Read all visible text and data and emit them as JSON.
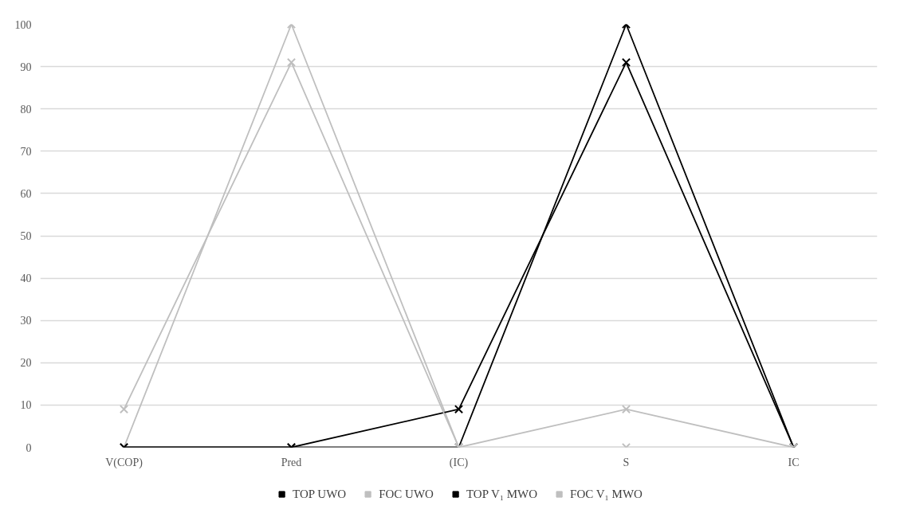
{
  "chart_data": {
    "type": "line",
    "categories": [
      "V(COP)",
      "Pred",
      "(IC)",
      "S",
      "IC"
    ],
    "ylim": [
      0,
      100
    ],
    "yticks": [
      0,
      10,
      20,
      30,
      40,
      50,
      60,
      70,
      80,
      90,
      100
    ],
    "grid": "y",
    "legend": "bottom",
    "marker": "cross",
    "line_style": "solid",
    "series": [
      {
        "name": "TOP UWO",
        "color": "#000000",
        "values": [
          0,
          0,
          0,
          100,
          0
        ]
      },
      {
        "name": "FOC UWO",
        "color": "#bfbfbf",
        "values": [
          0,
          100,
          0,
          0,
          0
        ]
      },
      {
        "name": "TOP V₁ MWO",
        "color": "#000000",
        "values": [
          0,
          0,
          9,
          91,
          0
        ]
      },
      {
        "name": "FOC V₁ MWO",
        "color": "#bfbfbf",
        "values": [
          9,
          91,
          0,
          9,
          0
        ]
      }
    ]
  }
}
